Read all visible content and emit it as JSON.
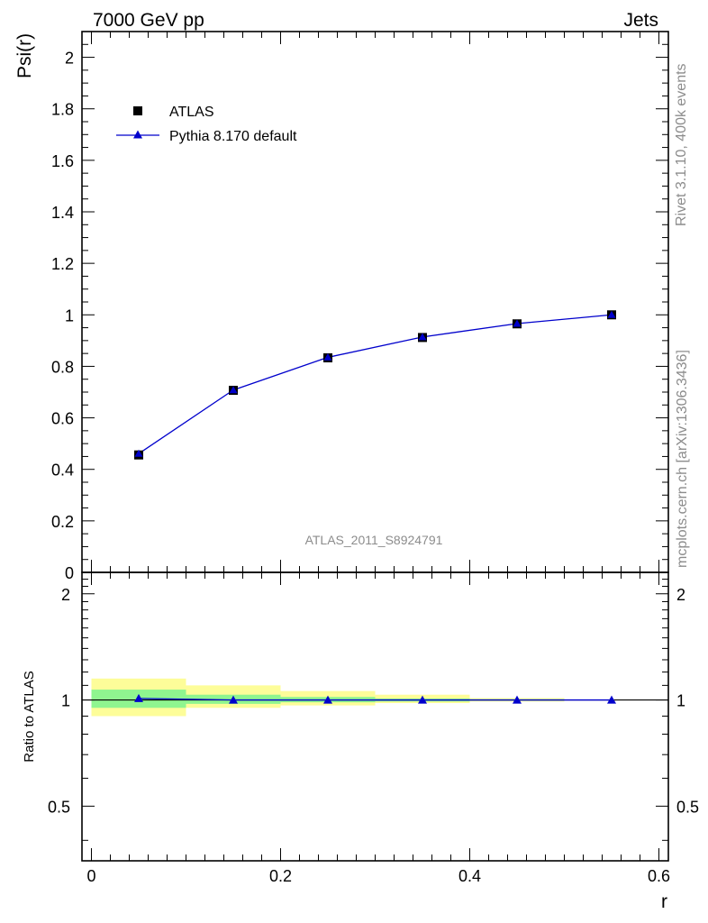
{
  "header": {
    "energy_label": "7000 GeV pp",
    "process_label": "Jets"
  },
  "side_text": {
    "rivet": "Rivet 3.1.10,  400k events",
    "source": "mcplots.cern.ch [arXiv:1306.3436]"
  },
  "analysis_label": "ATLAS_2011_S8924791",
  "legend": {
    "data_label": "ATLAS",
    "mc_label": "Pythia 8.170 default"
  },
  "colors": {
    "mc": "#0000cc",
    "data": "#000000",
    "band_inner": "#8ff58f",
    "band_outer": "#fdfd99"
  },
  "chart_data": [
    {
      "type": "scatter",
      "title": "",
      "xlabel": "",
      "ylabel": "Psi(r)",
      "xlim": [
        -0.01,
        0.61
      ],
      "ylim": [
        0,
        2.1
      ],
      "yticks": [
        0,
        0.2,
        0.4,
        0.6,
        0.8,
        1,
        1.2,
        1.4,
        1.6,
        1.8,
        2
      ],
      "ytick_labels": [
        "0",
        "0.2",
        "0.4",
        "0.6",
        "0.8",
        "1",
        "1.2",
        "1.4",
        "1.6",
        "1.8",
        "2"
      ],
      "x": [
        0.05,
        0.15,
        0.25,
        0.35,
        0.45,
        0.55
      ],
      "series": [
        {
          "name": "ATLAS",
          "values": [
            0.456,
            0.707,
            0.833,
            0.912,
            0.965,
            1.0
          ]
        },
        {
          "name": "Pythia 8.170 default",
          "values": [
            0.461,
            0.708,
            0.835,
            0.914,
            0.966,
            1.0
          ]
        }
      ]
    },
    {
      "type": "scatter",
      "title": "",
      "xlabel": "r",
      "ylabel": "Ratio to ATLAS",
      "xlim": [
        -0.01,
        0.61
      ],
      "ylim": [
        0.35,
        2.3
      ],
      "scale": "log",
      "yticks": [
        0.5,
        1,
        2
      ],
      "ytick_labels": [
        "0.5",
        "1",
        "2"
      ],
      "xticks": [
        0,
        0.2,
        0.4,
        0.6
      ],
      "xtick_labels": [
        "0",
        "0.2",
        "0.4",
        "0.6"
      ],
      "bins": [
        [
          0.0,
          0.1
        ],
        [
          0.1,
          0.2
        ],
        [
          0.2,
          0.3
        ],
        [
          0.3,
          0.4
        ],
        [
          0.4,
          0.5
        ],
        [
          0.5,
          0.6
        ]
      ],
      "band_inner": [
        [
          0.95,
          1.07
        ],
        [
          0.975,
          1.035
        ],
        [
          0.985,
          1.02
        ],
        [
          0.99,
          1.01
        ],
        [
          0.995,
          1.005
        ],
        [
          1.0,
          1.0
        ]
      ],
      "band_outer": [
        [
          0.9,
          1.15
        ],
        [
          0.95,
          1.1
        ],
        [
          0.965,
          1.06
        ],
        [
          0.98,
          1.035
        ],
        [
          0.99,
          1.012
        ],
        [
          1.0,
          1.0
        ]
      ],
      "x": [
        0.05,
        0.15,
        0.25,
        0.35,
        0.45,
        0.55
      ],
      "series": [
        {
          "name": "Pythia 8.170 default",
          "values": [
            1.01,
            1.0,
            1.0,
            1.0,
            1.0,
            1.0
          ]
        }
      ]
    }
  ]
}
